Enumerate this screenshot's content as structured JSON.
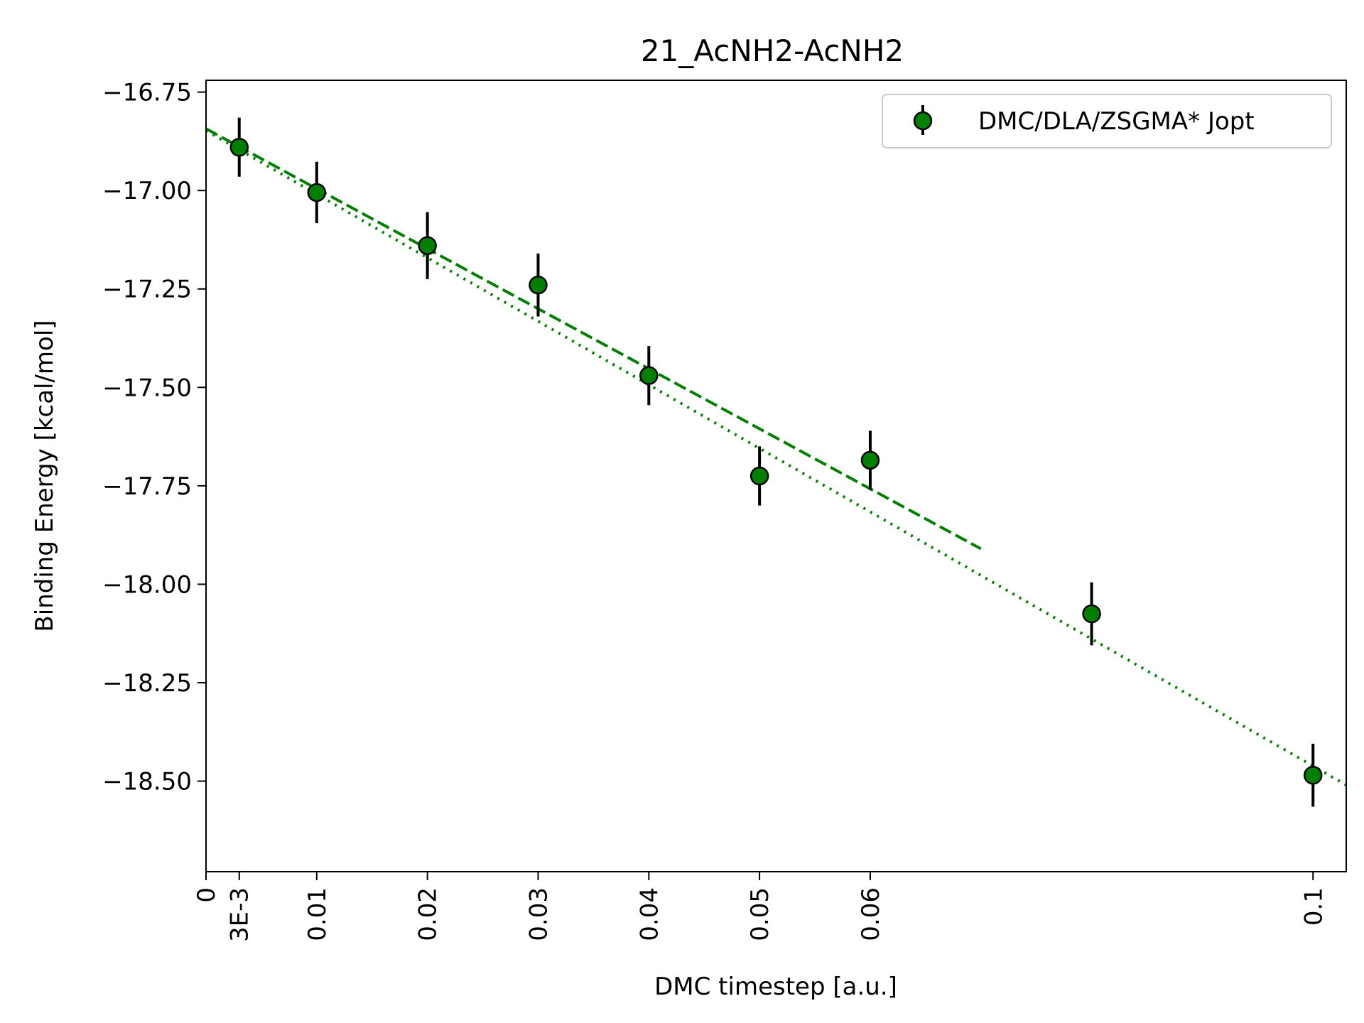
{
  "chart_data": {
    "type": "scatter",
    "title": "21_AcNH2-AcNH2",
    "xlabel": "DMC timestep [a.u.]",
    "ylabel": "Binding Energy [kcal/mol]",
    "xlim": [
      0,
      0.103
    ],
    "ylim": [
      -18.73,
      -16.72
    ],
    "x_ticks": [
      {
        "value": 0,
        "label": "0"
      },
      {
        "value": 0.003,
        "label": "3E-3"
      },
      {
        "value": 0.01,
        "label": "0.01"
      },
      {
        "value": 0.02,
        "label": "0.02"
      },
      {
        "value": 0.03,
        "label": "0.03"
      },
      {
        "value": 0.04,
        "label": "0.04"
      },
      {
        "value": 0.05,
        "label": "0.05"
      },
      {
        "value": 0.06,
        "label": "0.06"
      },
      {
        "value": 0.1,
        "label": "0.1"
      }
    ],
    "y_ticks": [
      {
        "value": -16.75,
        "label": "−16.75"
      },
      {
        "value": -17.0,
        "label": "−17.00"
      },
      {
        "value": -17.25,
        "label": "−17.25"
      },
      {
        "value": -17.5,
        "label": "−17.50"
      },
      {
        "value": -17.75,
        "label": "−17.75"
      },
      {
        "value": -18.0,
        "label": "−18.00"
      },
      {
        "value": -18.25,
        "label": "−18.25"
      },
      {
        "value": -18.5,
        "label": "−18.50"
      }
    ],
    "grid": false,
    "legend_position": "top-right",
    "series": [
      {
        "name": "DMC/DLA/ZSGMA* Jopt",
        "color": "#008000",
        "edge_color": "#000000",
        "x": [
          0.003,
          0.01,
          0.02,
          0.03,
          0.04,
          0.05,
          0.06,
          0.08,
          0.1
        ],
        "y": [
          -16.89,
          -17.005,
          -17.14,
          -17.24,
          -17.47,
          -17.725,
          -17.685,
          -18.075,
          -18.485
        ],
        "yerr": [
          0.075,
          0.078,
          0.085,
          0.08,
          0.075,
          0.075,
          0.075,
          0.08,
          0.08
        ]
      }
    ],
    "fit_lines": [
      {
        "style": "dashed",
        "color": "#008000",
        "x": [
          0,
          0.07
        ],
        "y": [
          -16.843,
          -17.91
        ]
      },
      {
        "style": "dotted",
        "color": "#008000",
        "x": [
          0,
          0.103
        ],
        "y": [
          -16.848,
          -18.51
        ]
      }
    ]
  }
}
